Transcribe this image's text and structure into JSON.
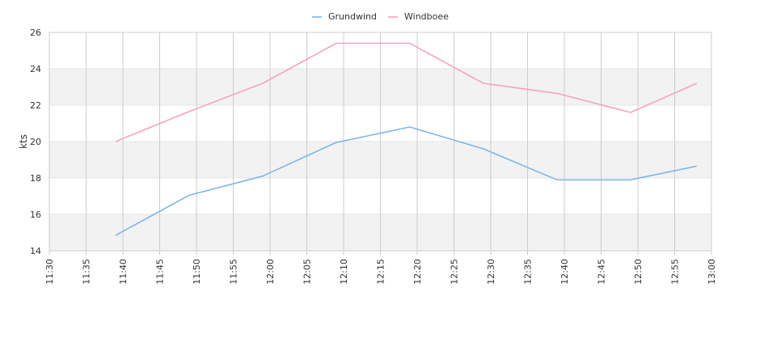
{
  "chart_data": {
    "type": "line",
    "x": [
      "11:39",
      "11:49",
      "11:59",
      "12:09",
      "12:19",
      "12:29",
      "12:39",
      "12:49",
      "12:58"
    ],
    "series": [
      {
        "name": "Grundwind",
        "color": "#7cb5ec",
        "values": [
          14.85,
          17.05,
          18.1,
          19.95,
          20.8,
          19.6,
          17.9,
          17.9,
          18.65
        ]
      },
      {
        "name": "Windboee",
        "color": "#f7a1c4",
        "values": [
          20.0,
          21.65,
          23.2,
          25.4,
          25.4,
          23.2,
          22.65,
          21.6,
          23.2
        ]
      }
    ],
    "xlim": [
      "11:30",
      "13:00"
    ],
    "x_ticks": [
      "11:30",
      "11:35",
      "11:40",
      "11:45",
      "11:50",
      "11:55",
      "12:00",
      "12:05",
      "12:10",
      "12:15",
      "12:20",
      "12:25",
      "12:30",
      "12:35",
      "12:40",
      "12:45",
      "12:50",
      "12:55",
      "13:00"
    ],
    "ylim": [
      14,
      26
    ],
    "y_ticks": [
      "14",
      "16",
      "18",
      "20",
      "22",
      "24",
      "26"
    ],
    "ylabel": "kts",
    "xlabel": "",
    "title": "",
    "legend": "top-center",
    "grid": true,
    "band_color": "#f2f2f2",
    "grid_color": "#cccccc"
  }
}
